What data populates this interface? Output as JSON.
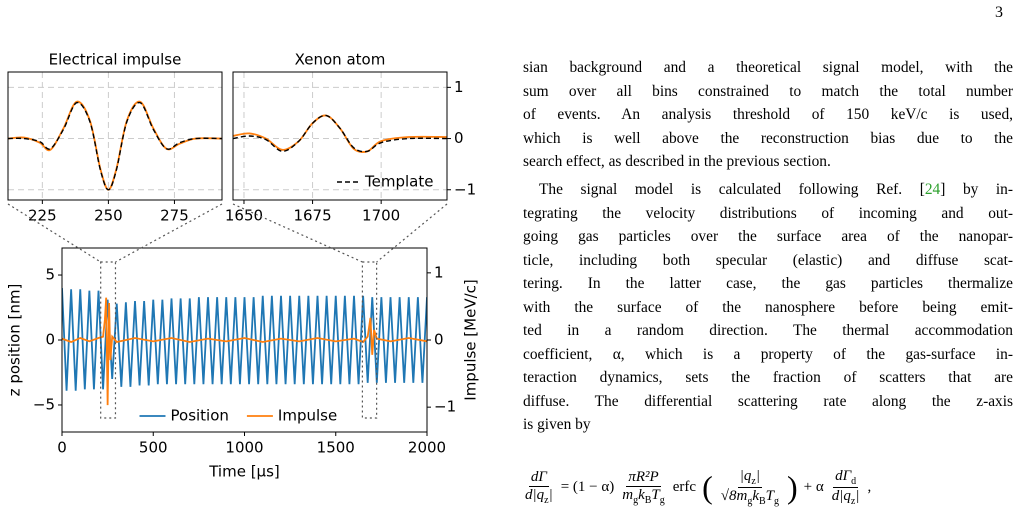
{
  "page_number": "3",
  "chart_data": [
    {
      "type": "line",
      "title": "Electrical impulse",
      "x": [
        212,
        218,
        224,
        228,
        233,
        238,
        243,
        247,
        250,
        253,
        257,
        262,
        267,
        272,
        277,
        283,
        293
      ],
      "xlim": [
        212,
        293
      ],
      "xticks": [
        225,
        250,
        275
      ],
      "ylim": [
        -1.2,
        1.3
      ],
      "yticks": [
        -1,
        0,
        1
      ],
      "ytick_labels": false,
      "grid": true,
      "smooth": true,
      "series": [
        {
          "color": "#ff7f0e",
          "values": [
            0.0,
            0.02,
            -0.08,
            -0.22,
            0.2,
            0.72,
            0.35,
            -0.6,
            -1.0,
            -0.6,
            0.35,
            0.72,
            0.2,
            -0.2,
            -0.1,
            0.0,
            0.0
          ]
        },
        {
          "name": "Template",
          "color": "#000000",
          "dash": true,
          "values": [
            0.0,
            0.0,
            -0.06,
            -0.2,
            0.18,
            0.7,
            0.33,
            -0.62,
            -1.0,
            -0.62,
            0.33,
            0.7,
            0.18,
            -0.2,
            -0.08,
            0.0,
            0.0
          ]
        }
      ]
    },
    {
      "type": "line",
      "title": "Xenon atom",
      "x": [
        1646,
        1652,
        1658,
        1664,
        1670,
        1675,
        1680,
        1685,
        1690,
        1695,
        1700,
        1710,
        1724
      ],
      "xlim": [
        1646,
        1724
      ],
      "xticks": [
        1650,
        1675,
        1700
      ],
      "ylim": [
        -1.2,
        1.3
      ],
      "yticks": [
        {
          "value": -1,
          "label": "−1"
        },
        0,
        1
      ],
      "y_axis_side": "right",
      "grid": true,
      "smooth": true,
      "legend": "lower right",
      "series": [
        {
          "color": "#ff7f0e",
          "values": [
            0.05,
            0.1,
            0.0,
            -0.22,
            -0.05,
            0.3,
            0.45,
            0.2,
            -0.2,
            -0.25,
            -0.05,
            0.03,
            0.03
          ]
        },
        {
          "name": "Template",
          "color": "#000000",
          "dash": true,
          "values": [
            0.0,
            0.05,
            -0.02,
            -0.25,
            -0.05,
            0.3,
            0.45,
            0.2,
            -0.18,
            -0.25,
            -0.08,
            0.0,
            0.0
          ]
        }
      ]
    },
    {
      "type": "line",
      "xlabel": "Time [μs]",
      "ylabel": "z position [nm]",
      "y2label": "Impulse [MeV/c]",
      "xlim": [
        0,
        2000
      ],
      "xticks": [
        0,
        500,
        1000,
        1500,
        2000
      ],
      "ylim": [
        -7.08,
        7.08
      ],
      "yticks": [
        {
          "value": -5,
          "label": "−5"
        },
        0,
        5
      ],
      "y2lim": [
        -1.37,
        1.37
      ],
      "y2ticks": [
        {
          "value": -1,
          "label": "−1"
        },
        0,
        1
      ],
      "legend": "lower center",
      "grid": false,
      "series": [
        {
          "name": "Position",
          "color": "#1f77b4",
          "x": [
            0,
            25,
            50,
            75,
            100,
            125,
            150,
            175,
            200,
            225,
            250,
            275,
            300,
            325,
            350,
            375,
            400,
            425,
            450,
            475,
            500,
            525,
            550,
            575,
            600,
            625,
            650,
            675,
            700,
            725,
            750,
            775,
            800,
            825,
            850,
            875,
            900,
            925,
            950,
            975,
            1000,
            1025,
            1050,
            1075,
            1100,
            1125,
            1150,
            1175,
            1200,
            1225,
            1250,
            1275,
            1300,
            1325,
            1350,
            1375,
            1400,
            1425,
            1450,
            1475,
            1500,
            1525,
            1550,
            1575,
            1600,
            1625,
            1650,
            1675,
            1700,
            1725,
            1750,
            1775,
            1800,
            1825,
            1850,
            1875,
            1900,
            1925,
            1950,
            1975,
            2000
          ],
          "values": [
            4.0,
            -3.9,
            3.9,
            -3.9,
            3.9,
            -3.8,
            3.8,
            -3.8,
            3.8,
            -3.8,
            3.1,
            -3.0,
            2.8,
            -3.6,
            2.9,
            -3.6,
            3.0,
            -3.5,
            3.0,
            -3.5,
            3.1,
            -3.4,
            3.1,
            -3.4,
            3.2,
            -3.4,
            3.2,
            -3.4,
            3.2,
            -3.4,
            3.3,
            -3.4,
            3.3,
            -3.4,
            3.3,
            -3.4,
            3.3,
            -3.4,
            3.3,
            -3.4,
            3.3,
            -3.4,
            3.3,
            -3.4,
            3.4,
            -3.4,
            3.4,
            -3.4,
            3.4,
            -3.4,
            3.4,
            -3.4,
            3.4,
            -3.4,
            3.4,
            -3.4,
            3.4,
            -3.4,
            3.4,
            -3.4,
            3.4,
            -3.4,
            3.4,
            -3.4,
            3.4,
            -3.4,
            3.4,
            -3.3,
            3.3,
            -3.3,
            3.3,
            -3.3,
            3.3,
            -3.3,
            3.3,
            -3.3,
            3.3,
            -3.3,
            3.3,
            -3.3,
            3.3
          ]
        },
        {
          "name": "Impulse",
          "color": "#ff7f0e",
          "axis": "y2",
          "x": [
            0,
            50,
            100,
            150,
            200,
            225,
            235,
            242,
            250,
            258,
            265,
            275,
            300,
            400,
            500,
            600,
            700,
            800,
            900,
            1000,
            1100,
            1200,
            1300,
            1400,
            1500,
            1600,
            1650,
            1675,
            1690,
            1700,
            1710,
            1725,
            1800,
            1900,
            2000
          ],
          "values": [
            0.02,
            -0.03,
            0.03,
            -0.02,
            0.03,
            0.05,
            0.3,
            0.63,
            -0.97,
            0.55,
            -0.3,
            0.05,
            -0.03,
            0.03,
            -0.02,
            0.03,
            -0.03,
            0.02,
            -0.02,
            0.03,
            -0.03,
            0.02,
            -0.02,
            0.03,
            -0.02,
            0.02,
            -0.03,
            0.05,
            0.33,
            -0.22,
            0.15,
            0.02,
            -0.02,
            0.03,
            -0.02
          ]
        }
      ]
    }
  ],
  "paragraphs": [
    {
      "lines": [
        "sian background and a theoretical signal model, with the",
        "sum over all bins constrained to match the total number",
        "of events.  An analysis threshold of 150 keV/c is used,",
        "which is well above the reconstruction bias due to the",
        "search effect, as described in the previous section."
      ]
    },
    {
      "first_line": {
        "before": "The signal model is calculated following Ref. [",
        "ref": "24",
        "after": "] by in-"
      },
      "lines": [
        "tegrating the velocity distributions of incoming and out-",
        "going gas particles over the surface area of the nanopar-",
        "ticle, including both specular (elastic) and diffuse scat-",
        "tering.  In the latter case, the gas particles thermalize",
        "with the surface of the nanosphere before being emit-",
        "ted in a random direction.  The thermal accommodation",
        "coefficient, α, which is a property of the gas-surface in-",
        "teraction dynamics, sets the fraction of scatters that are",
        "diffuse.  The differential scattering rate along the z-axis",
        "is given by"
      ]
    }
  ],
  "equation": {
    "f1_num": [
      "dΓ"
    ],
    "f1_den": [
      "d|q",
      "z",
      "|"
    ],
    "factor": "= (1 − α)",
    "f2_num": [
      "πR²P"
    ],
    "f2_den": [
      "m",
      "g",
      "k",
      "B",
      "T",
      "g"
    ],
    "func": "erfc",
    "f3_num": [
      "|q",
      "z",
      "|"
    ],
    "f3_den": [
      "√8m",
      "g",
      "k",
      "B",
      "T",
      "g"
    ],
    "plus": "+ α",
    "f4_num": [
      "dΓ",
      "d"
    ],
    "f4_den": [
      "d|q",
      "z",
      "|"
    ],
    "tail": ","
  }
}
